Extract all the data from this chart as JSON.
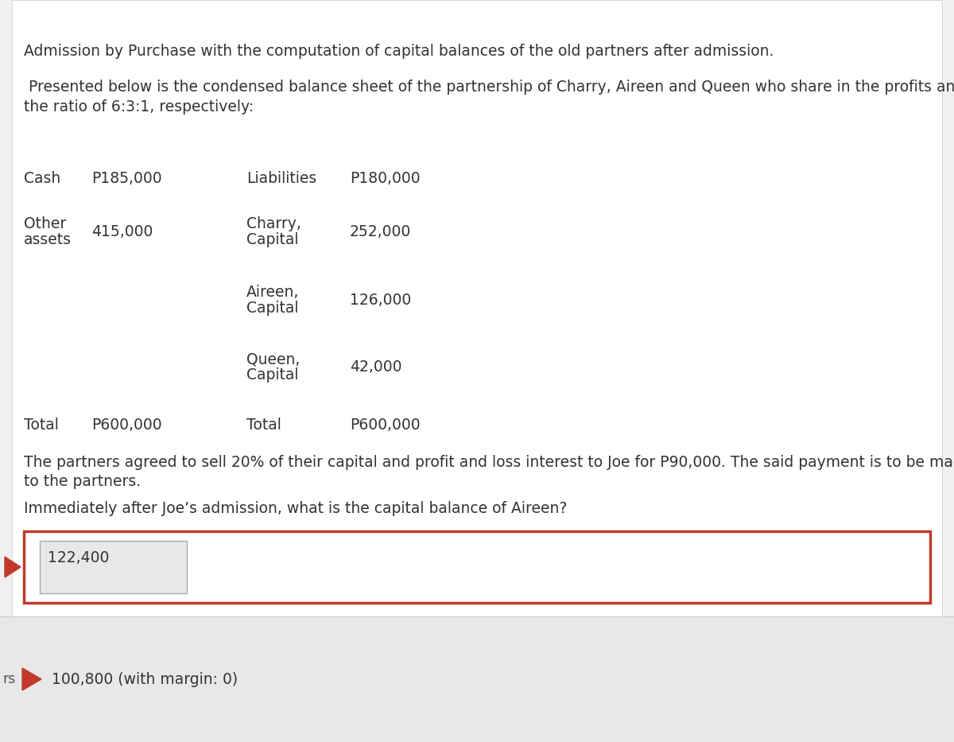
{
  "bg_color": "#f0f0f0",
  "content_bg": "#ffffff",
  "title": "Admission by Purchase with the computation of capital balances of the old partners after admission.",
  "paragraph1_line1": " Presented below is the condensed balance sheet of the partnership of Charry, Aireen and Queen who share in the profits and losses in",
  "paragraph1_line2": "the ratio of 6:3:1, respectively:",
  "row0_c1_label": "Cash",
  "row0_c1_val": "P185,000",
  "row0_c2_label": "Liabilities",
  "row0_c2_val": "P180,000",
  "row1_c1_label1": "Other",
  "row1_c1_label2": "assets",
  "row1_c1_val": "415,000",
  "row1_c2_label1": "Charry,",
  "row1_c2_label2": "Capital",
  "row1_c2_val": "252,000",
  "row2_c2_label1": "Aireen,",
  "row2_c2_label2": "Capital",
  "row2_c2_val": "126,000",
  "row3_c2_label1": "Queen,",
  "row3_c2_label2": "Capital",
  "row3_c2_val": "42,000",
  "row4_c1_label": "Total",
  "row4_c1_val": "P600,000",
  "row4_c2_label": "Total",
  "row4_c2_val": "P600,000",
  "paragraph2_line1": "The partners agreed to sell 20% of their capital and profit and loss interest to Joe for P90,000. The said payment is to be made directly",
  "paragraph2_line2": "to the partners.",
  "question": "Immediately after Joe’s admission, what is the capital balance of Aireen?",
  "answer_text": "122,400",
  "footer_text": "100,800 (with margin: 0)",
  "red_color": "#c0392b",
  "text_color": "#333333",
  "light_gray": "#e8e8e8",
  "border_gray": "#aaaaaa",
  "footer_bg": "#e8e8e8",
  "font_size": 13.5
}
